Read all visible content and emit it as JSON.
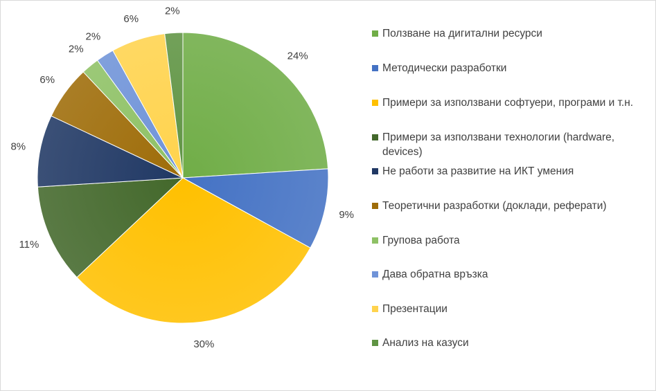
{
  "chart_data": {
    "type": "pie",
    "title": "",
    "slices": [
      {
        "label": "Ползване на дигитални ресурси",
        "value": 24,
        "display": "24%",
        "color": "#70ad47"
      },
      {
        "label": "Методически разработки",
        "value": 9,
        "display": "9%",
        "color": "#4472c4"
      },
      {
        "label": "Примери за използвани софтуери, програми и т.н.",
        "value": 30,
        "display": "30%",
        "color": "#ffc000"
      },
      {
        "label": "Примери за използвани технологии (hardware, devices)",
        "value": 11,
        "display": "11%",
        "color": "#43682b"
      },
      {
        "label": "Не работи за развитие на ИКТ умения",
        "value": 8,
        "display": "8%",
        "color": "#203864"
      },
      {
        "label": "Теоретични разработки (доклади, реферати)",
        "value": 6,
        "display": "6%",
        "color": "#9e6c08"
      },
      {
        "label": "Групова работа",
        "value": 2,
        "display": "2%",
        "color": "#8ec165"
      },
      {
        "label": "Дава обратна връзка",
        "value": 2,
        "display": "2%",
        "color": "#6f93d8"
      },
      {
        "label": "Презентации",
        "value": 6,
        "display": "6%",
        "color": "#ffd34d"
      },
      {
        "label": "Анализ на казуси",
        "value": 2,
        "display": "2%",
        "color": "#5f9443"
      }
    ],
    "legend_position": "right"
  }
}
